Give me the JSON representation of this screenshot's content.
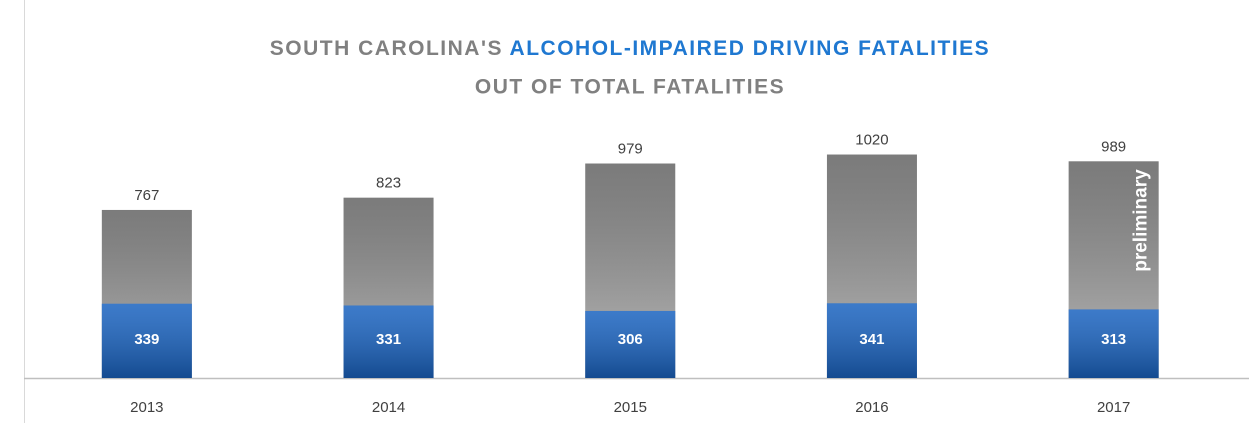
{
  "chart_data": {
    "type": "overlap-bar",
    "title_parts": [
      "SOUTH CAROLINA'S",
      "ALCOHOL-IMPAIRED DRIVING FATALITIES",
      "OUT OF TOTAL FATALITIES"
    ],
    "categories": [
      "2013",
      "2014",
      "2015",
      "2016",
      "2017"
    ],
    "series": [
      {
        "name": "Total Fatalities",
        "color": "#9a9a9a",
        "values": [
          767,
          823,
          979,
          1020,
          989
        ]
      },
      {
        "name": "Alcohol-Impaired Driving Fatalities",
        "color": "#1a63c0",
        "values": [
          339,
          331,
          306,
          341,
          313
        ]
      }
    ],
    "annotations": [
      {
        "text": "preliminary",
        "category": 4
      }
    ],
    "ylim": [
      0,
      1100
    ]
  }
}
